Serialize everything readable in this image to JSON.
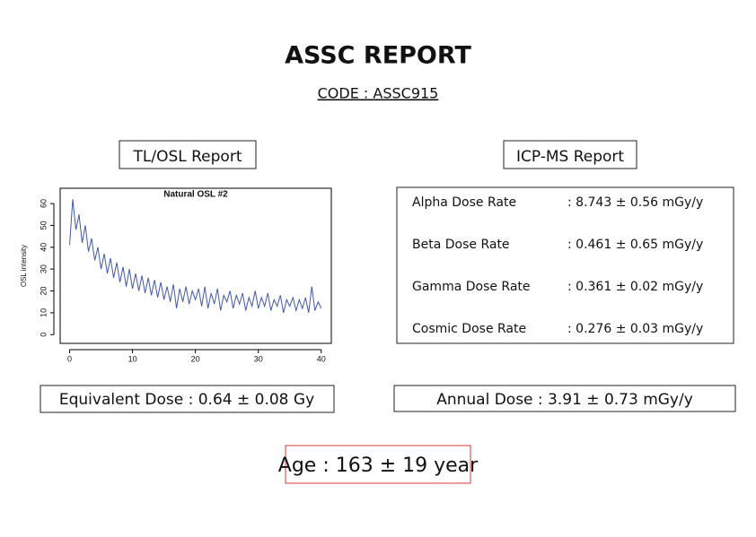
{
  "header": {
    "title": "ASSC REPORT",
    "code": "CODE : ASSC915"
  },
  "left_section": {
    "heading": "TL/OSL Report",
    "result": "Equivalent Dose : 0.64 ± 0.08 Gy"
  },
  "right_section": {
    "heading": "ICP-MS Report",
    "rows": [
      {
        "label": "Alpha Dose Rate",
        "value": ": 8.743 ± 0.56 mGy/y"
      },
      {
        "label": "Beta Dose Rate",
        "value": ": 0.461 ± 0.65 mGy/y"
      },
      {
        "label": "Gamma Dose Rate",
        "value": ": 0.361 ± 0.02 mGy/y"
      },
      {
        "label": "Cosmic Dose Rate",
        "value": ": 0.276 ± 0.03 mGy/y"
      }
    ],
    "result": "Annual Dose : 3.91 ± 0.73 mGy/y"
  },
  "footer": {
    "age": "Age : 163 ± 19 year"
  },
  "chart_data": {
    "type": "line",
    "title": "Natural OSL #2",
    "y_label": "OSL intensity",
    "color": "#4357a8",
    "x": [
      0,
      0.5,
      1,
      1.5,
      2,
      2.5,
      3,
      3.5,
      4,
      4.5,
      5,
      5.5,
      6,
      6.5,
      7,
      7.5,
      8,
      8.5,
      9,
      9.5,
      10,
      10.5,
      11,
      11.5,
      12,
      12.5,
      13,
      13.5,
      14,
      14.5,
      15,
      15.5,
      16,
      16.5,
      17,
      17.5,
      18,
      18.5,
      19,
      19.5,
      20,
      20.5,
      21,
      21.5,
      22,
      22.5,
      23,
      23.5,
      24,
      24.5,
      25,
      25.5,
      26,
      26.5,
      27,
      27.5,
      28,
      28.5,
      29,
      29.5,
      30,
      30.5,
      31,
      31.5,
      32,
      32.5,
      33,
      33.5,
      34,
      34.5,
      35,
      35.5,
      36,
      36.5,
      37,
      37.5,
      38,
      38.5,
      39,
      39.5,
      40
    ],
    "values": [
      41,
      62,
      48,
      55,
      42,
      50,
      38,
      44,
      34,
      40,
      30,
      37,
      28,
      35,
      26,
      33,
      24,
      31,
      22,
      30,
      21,
      28,
      20,
      27,
      19,
      26,
      18,
      25,
      17,
      24,
      16,
      22,
      15,
      23,
      12,
      21,
      15,
      22,
      14,
      20,
      16,
      21,
      13,
      22,
      12,
      19,
      14,
      21,
      11,
      18,
      15,
      20,
      12,
      18,
      14,
      19,
      11,
      17,
      13,
      20,
      12,
      17,
      13,
      19,
      11,
      16,
      13,
      18,
      10,
      16,
      13,
      17,
      11,
      16,
      12,
      17,
      10,
      22,
      11,
      15,
      12
    ],
    "xlim": [
      -1.5,
      41.6
    ],
    "ylim": [
      -4,
      67
    ],
    "xticks": [
      0,
      10,
      20,
      30,
      40
    ],
    "yticks": [
      0,
      10,
      20,
      30,
      40,
      50,
      60
    ]
  }
}
